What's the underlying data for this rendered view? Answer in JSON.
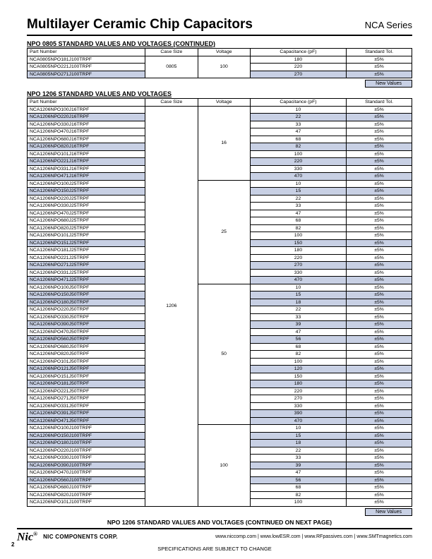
{
  "header": {
    "title": "Multilayer Ceramic Chip Capacitors",
    "series": "NCA Series"
  },
  "section1": {
    "title": "NPO 0805 STANDARD VALUES AND VOLTAGES (CONTINUED)",
    "headers": {
      "part": "Part Number",
      "case": "Case Size",
      "voltage": "Voltage",
      "cap": "Capacitance (pF)",
      "tol": "Standard Tol."
    },
    "case": "0805",
    "voltage": "100",
    "rows": [
      {
        "part": "NCA0805NPO181J100TRPF",
        "cap": "180",
        "tol": "±5%",
        "shaded": false
      },
      {
        "part": "NCA0805NPO221J100TRPF",
        "cap": "220",
        "tol": "±5%",
        "shaded": false
      },
      {
        "part": "NCA0805NPO271J100TRPF",
        "cap": "270",
        "tol": "±5%",
        "shaded": true
      }
    ]
  },
  "new_values_label": "New Values",
  "section2": {
    "title": "NPO 1206 STANDARD VALUES AND VOLTAGES",
    "headers": {
      "part": "Part Number",
      "case": "Case Size",
      "voltage": "Voltage",
      "cap": "Capacitance (pF)",
      "tol": "Standard Tol."
    },
    "case": "1206",
    "groups": [
      {
        "voltage": "16",
        "rows": [
          {
            "part": "NCA1206NPO100J16TRPF",
            "cap": "10",
            "tol": "±5%",
            "shaded": false
          },
          {
            "part": "NCA1206NPO220J16TRPF",
            "cap": "22",
            "tol": "±5%",
            "shaded": true
          },
          {
            "part": "NCA1206NPO330J16TRPF",
            "cap": "33",
            "tol": "±5%",
            "shaded": false
          },
          {
            "part": "NCA1206NPO470J16TRPF",
            "cap": "47",
            "tol": "±5%",
            "shaded": false
          },
          {
            "part": "NCA1206NPO680J16TRPF",
            "cap": "68",
            "tol": "±5%",
            "shaded": false
          },
          {
            "part": "NCA1206NPO820J16TRPF",
            "cap": "82",
            "tol": "±5%",
            "shaded": true
          },
          {
            "part": "NCA1206NPO101J16TRPF",
            "cap": "100",
            "tol": "±5%",
            "shaded": false
          },
          {
            "part": "NCA1206NPO221J16TRPF",
            "cap": "220",
            "tol": "±5%",
            "shaded": true
          },
          {
            "part": "NCA1206NPO331J16TRPF",
            "cap": "330",
            "tol": "±5%",
            "shaded": false
          },
          {
            "part": "NCA1206NPO471J16TRPF",
            "cap": "470",
            "tol": "±5%",
            "shaded": true
          }
        ]
      },
      {
        "voltage": "25",
        "rows": [
          {
            "part": "NCA1206NPO100J25TRPF",
            "cap": "10",
            "tol": "±5%",
            "shaded": false
          },
          {
            "part": "NCA1206NPO150J25TRPF",
            "cap": "15",
            "tol": "±5%",
            "shaded": true
          },
          {
            "part": "NCA1206NPO220J25TRPF",
            "cap": "22",
            "tol": "±5%",
            "shaded": false
          },
          {
            "part": "NCA1206NPO330J25TRPF",
            "cap": "33",
            "tol": "±5%",
            "shaded": false
          },
          {
            "part": "NCA1206NPO470J25TRPF",
            "cap": "47",
            "tol": "±5%",
            "shaded": false
          },
          {
            "part": "NCA1206NPO680J25TRPF",
            "cap": "68",
            "tol": "±5%",
            "shaded": false
          },
          {
            "part": "NCA1206NPO820J25TRPF",
            "cap": "82",
            "tol": "±5%",
            "shaded": false
          },
          {
            "part": "NCA1206NPO101J25TRPF",
            "cap": "100",
            "tol": "±5%",
            "shaded": false
          },
          {
            "part": "NCA1206NPO151J25TRPF",
            "cap": "150",
            "tol": "±5%",
            "shaded": true
          },
          {
            "part": "NCA1206NPO181J25TRPF",
            "cap": "180",
            "tol": "±5%",
            "shaded": false
          },
          {
            "part": "NCA1206NPO221J25TRPF",
            "cap": "220",
            "tol": "±5%",
            "shaded": false
          },
          {
            "part": "NCA1206NPO271J25TRPF",
            "cap": "270",
            "tol": "±5%",
            "shaded": true
          },
          {
            "part": "NCA1206NPO331J25TRPF",
            "cap": "330",
            "tol": "±5%",
            "shaded": false
          },
          {
            "part": "NCA1206NPO471J25TRPF",
            "cap": "470",
            "tol": "±5%",
            "shaded": true
          }
        ]
      },
      {
        "voltage": "50",
        "rows": [
          {
            "part": "NCA1206NPO100J50TRPF",
            "cap": "10",
            "tol": "±5%",
            "shaded": false
          },
          {
            "part": "NCA1206NPO150J50TRPF",
            "cap": "15",
            "tol": "±5%",
            "shaded": true
          },
          {
            "part": "NCA1206NPO180J50TRPF",
            "cap": "18",
            "tol": "±5%",
            "shaded": true
          },
          {
            "part": "NCA1206NPO220J50TRPF",
            "cap": "22",
            "tol": "±5%",
            "shaded": false
          },
          {
            "part": "NCA1206NPO330J50TRPF",
            "cap": "33",
            "tol": "±5%",
            "shaded": false
          },
          {
            "part": "NCA1206NPO390J50TRPF",
            "cap": "39",
            "tol": "±5%",
            "shaded": true
          },
          {
            "part": "NCA1206NPO470J50TRPF",
            "cap": "47",
            "tol": "±5%",
            "shaded": false
          },
          {
            "part": "NCA1206NPO560J50TRPF",
            "cap": "56",
            "tol": "±5%",
            "shaded": true
          },
          {
            "part": "NCA1206NPO680J50TRPF",
            "cap": "68",
            "tol": "±5%",
            "shaded": false
          },
          {
            "part": "NCA1206NPO820J50TRPF",
            "cap": "82",
            "tol": "±5%",
            "shaded": false
          },
          {
            "part": "NCA1206NPO101J50TRPF",
            "cap": "100",
            "tol": "±5%",
            "shaded": false
          },
          {
            "part": "NCA1206NPO121J50TRPF",
            "cap": "120",
            "tol": "±5%",
            "shaded": true
          },
          {
            "part": "NCA1206NPO151J50TRPF",
            "cap": "150",
            "tol": "±5%",
            "shaded": false
          },
          {
            "part": "NCA1206NPO181J50TRPF",
            "cap": "180",
            "tol": "±5%",
            "shaded": true
          },
          {
            "part": "NCA1206NPO221J50TRPF",
            "cap": "220",
            "tol": "±5%",
            "shaded": false
          },
          {
            "part": "NCA1206NPO271J50TRPF",
            "cap": "270",
            "tol": "±5%",
            "shaded": false
          },
          {
            "part": "NCA1206NPO331J50TRPF",
            "cap": "330",
            "tol": "±5%",
            "shaded": false
          },
          {
            "part": "NCA1206NPO391J50TRPF",
            "cap": "390",
            "tol": "±5%",
            "shaded": true
          },
          {
            "part": "NCA1206NPO471J50TRPF",
            "cap": "470",
            "tol": "±5%",
            "shaded": true
          }
        ]
      },
      {
        "voltage": "100",
        "rows": [
          {
            "part": "NCA1206NPO100J100TRPF",
            "cap": "10",
            "tol": "±5%",
            "shaded": false
          },
          {
            "part": "NCA1206NPO150J100TRPF",
            "cap": "15",
            "tol": "±5%",
            "shaded": true
          },
          {
            "part": "NCA1206NPO180J100TRPF",
            "cap": "18",
            "tol": "±5%",
            "shaded": true
          },
          {
            "part": "NCA1206NPO220J100TRPF",
            "cap": "22",
            "tol": "±5%",
            "shaded": false
          },
          {
            "part": "NCA1206NPO330J100TRPF",
            "cap": "33",
            "tol": "±5%",
            "shaded": false
          },
          {
            "part": "NCA1206NPO390J100TRPF",
            "cap": "39",
            "tol": "±5%",
            "shaded": true
          },
          {
            "part": "NCA1206NPO470J100TRPF",
            "cap": "47",
            "tol": "±5%",
            "shaded": false
          },
          {
            "part": "NCA1206NPO560J100TRPF",
            "cap": "56",
            "tol": "±5%",
            "shaded": true
          },
          {
            "part": "NCA1206NPO680J100TRPF",
            "cap": "68",
            "tol": "±5%",
            "shaded": false
          },
          {
            "part": "NCA1206NPO820J100TRPF",
            "cap": "82",
            "tol": "±5%",
            "shaded": false
          },
          {
            "part": "NCA1206NPO101J100TRPF",
            "cap": "100",
            "tol": "±5%",
            "shaded": false
          }
        ]
      }
    ]
  },
  "continued": "NPO 1206 STANDARD VALUES AND VOLTAGES (CONTINUED ON NEXT PAGE)",
  "footer": {
    "logo": "Nic",
    "reg": "®",
    "corp": "NIC COMPONENTS CORP.",
    "urls": "www.niccomp.com   |   www.lowESR.com   |   www.RFpassives.com   |   www.SMTmagnetics.com",
    "spec": "SPECIFICATIONS ARE SUBJECT TO CHANGE",
    "page": "2"
  },
  "style": {
    "shaded_bg": "#c8d0e4",
    "border": "#000000",
    "title_size": 19,
    "body_size": 7
  }
}
